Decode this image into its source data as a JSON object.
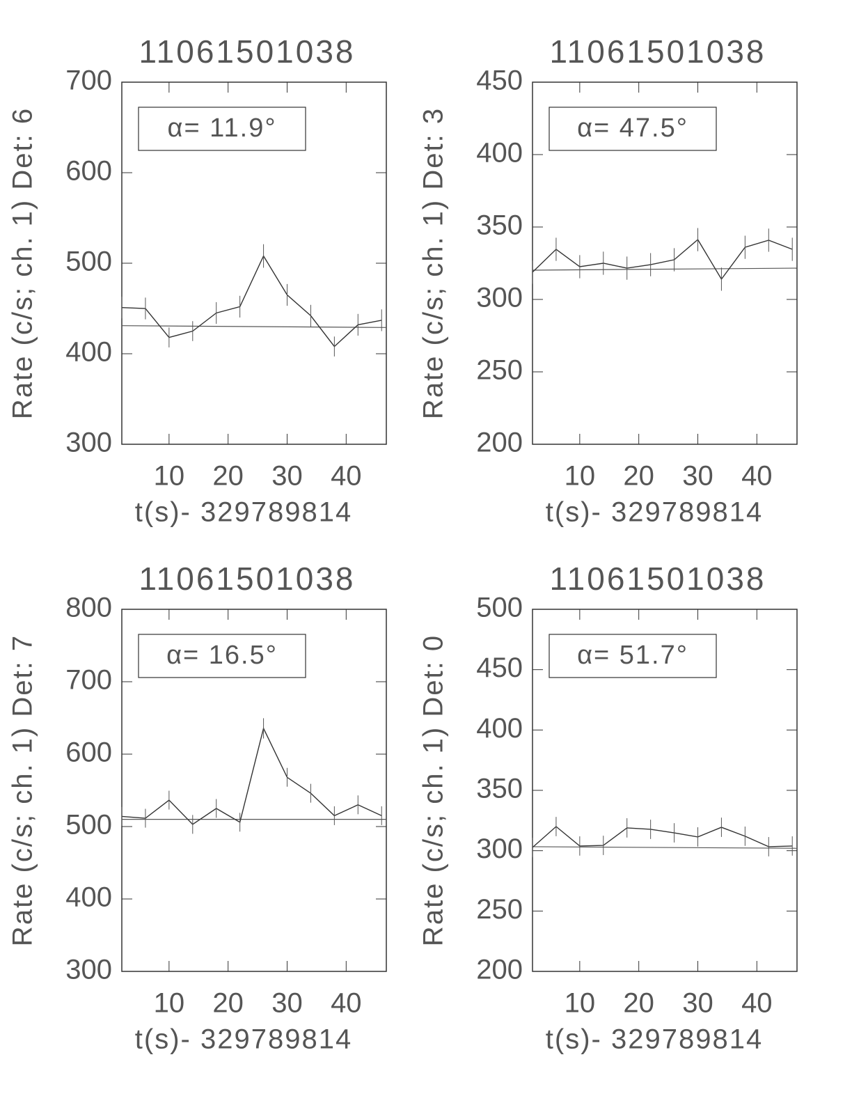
{
  "chart_data": [
    {
      "type": "line",
      "title": "11061501038",
      "ylabel": "Rate (c/s; ch. 1) Det: 6",
      "xlabel": "t(s)- 329789814",
      "annotation": "α= 11.9°",
      "x": [
        2,
        6,
        10,
        14,
        18,
        22,
        26,
        30,
        34,
        38,
        42,
        46
      ],
      "values": [
        451,
        450,
        418,
        425,
        445,
        452,
        508,
        465,
        442,
        408,
        432,
        437
      ],
      "errors": [
        12,
        12,
        11,
        11,
        12,
        12,
        13,
        12,
        12,
        11,
        12,
        12
      ],
      "fit": {
        "x": [
          2,
          46.8
        ],
        "values": [
          431,
          429
        ]
      },
      "xlim": [
        2,
        46.8
      ],
      "xticks": [
        10,
        20,
        30,
        40
      ],
      "ylim": [
        300,
        700
      ],
      "yticks": [
        300,
        400,
        500,
        600,
        700
      ],
      "color": "#333"
    },
    {
      "type": "line",
      "title": "11061501038",
      "ylabel": "Rate (c/s; ch. 1) Det: 3",
      "xlabel": "t(s)- 329789814",
      "annotation": "α= 47.5°",
      "x": [
        2,
        6,
        10,
        14,
        18,
        22,
        26,
        30,
        34,
        38,
        42,
        46
      ],
      "values": [
        318.8,
        334.6,
        322.6,
        325,
        321.6,
        324,
        327.4,
        341.3,
        314,
        336,
        340.9,
        334.6
      ],
      "errors": [
        8,
        8,
        8,
        8,
        8,
        8,
        8,
        8,
        8,
        8,
        8,
        8
      ],
      "fit": {
        "x": [
          2,
          46.8
        ],
        "values": [
          320.2,
          321.6
        ]
      },
      "xlim": [
        2,
        46.8
      ],
      "xticks": [
        10,
        20,
        30,
        40
      ],
      "ylim": [
        200,
        450
      ],
      "yticks": [
        200,
        250,
        300,
        350,
        400,
        450
      ],
      "color": "#333"
    },
    {
      "type": "line",
      "title": "11061501038",
      "ylabel": "Rate (c/s; ch. 1) Det: 7",
      "xlabel": "t(s)- 329789814",
      "annotation": "α= 16.5°",
      "x": [
        2,
        6,
        10,
        14,
        18,
        22,
        26,
        30,
        34,
        38,
        42,
        46
      ],
      "values": [
        514,
        511.5,
        536.5,
        503,
        525,
        506,
        635.6,
        568,
        546,
        515,
        530,
        515
      ],
      "errors": [
        13,
        13,
        13,
        13,
        13,
        13,
        14,
        13,
        13,
        13,
        13,
        13
      ],
      "fit": {
        "x": [
          2,
          46.8
        ],
        "values": [
          510,
          510
        ]
      },
      "xlim": [
        2,
        46.8
      ],
      "xticks": [
        10,
        20,
        30,
        40
      ],
      "ylim": [
        300,
        800
      ],
      "yticks": [
        300,
        400,
        500,
        600,
        700,
        800
      ],
      "color": "#333"
    },
    {
      "type": "line",
      "title": "11061501038",
      "ylabel": "Rate (c/s; ch. 1) Det: 0",
      "xlabel": "t(s)- 329789814",
      "annotation": "α= 51.7°",
      "x": [
        2,
        6,
        10,
        14,
        18,
        22,
        26,
        30,
        34,
        38,
        42,
        46
      ],
      "values": [
        302.7,
        320,
        303.9,
        304.4,
        318.9,
        317.7,
        314.8,
        311.4,
        319.4,
        312,
        303.3,
        303.9
      ],
      "errors": [
        8,
        8,
        8,
        8,
        8,
        8,
        8,
        8,
        8,
        8,
        8,
        8
      ],
      "fit": {
        "x": [
          2,
          46.8
        ],
        "values": [
          303.3,
          302
        ]
      },
      "xlim": [
        2,
        46.8
      ],
      "xticks": [
        10,
        20,
        30,
        40
      ],
      "ylim": [
        200,
        500
      ],
      "yticks": [
        200,
        250,
        300,
        350,
        400,
        450,
        500
      ],
      "color": "#333"
    }
  ]
}
